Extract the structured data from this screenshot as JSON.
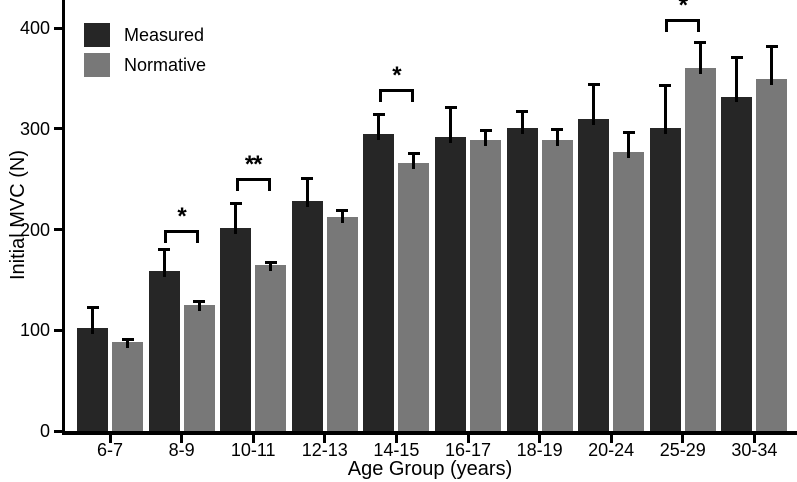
{
  "figure_type": "scientific-bar-chart",
  "chart_data": {
    "type": "bar",
    "title": "",
    "xlabel": "Age Group (years)",
    "ylabel": "Initial MVC (N)",
    "categories": [
      "6-7",
      "8-9",
      "10-11",
      "12-13",
      "14-15",
      "16-17",
      "18-19",
      "20-24",
      "25-29",
      "30-34"
    ],
    "series": [
      {
        "name": "Measured",
        "color": "#262626",
        "values": [
          102,
          159,
          201,
          228,
          295,
          292,
          301,
          310,
          301,
          332
        ],
        "errors_plus": [
          21,
          22,
          25,
          23,
          20,
          30,
          17,
          34,
          42,
          39
        ]
      },
      {
        "name": "Normative",
        "color": "#787878",
        "values": [
          88,
          125,
          165,
          212,
          266,
          289,
          289,
          277,
          360,
          349
        ],
        "errors_plus": [
          3,
          4,
          3,
          7,
          10,
          10,
          11,
          20,
          26,
          33
        ]
      }
    ],
    "y_ticks": [
      0,
      100,
      200,
      300,
      400
    ],
    "ylim": [
      0,
      428
    ],
    "grid": false,
    "legend_position": "top-left",
    "error_bars": "upper-only",
    "significance": [
      {
        "category": "8-9",
        "label": "*",
        "bracket_height": 200
      },
      {
        "category": "10-11",
        "label": "**",
        "bracket_height": 251
      },
      {
        "category": "14-15",
        "label": "*",
        "bracket_height": 339
      },
      {
        "category": "25-29",
        "label": "*",
        "bracket_height": 409
      }
    ]
  },
  "colors": {
    "axis": "#000000",
    "text": "#000000",
    "background": "#ffffff"
  }
}
